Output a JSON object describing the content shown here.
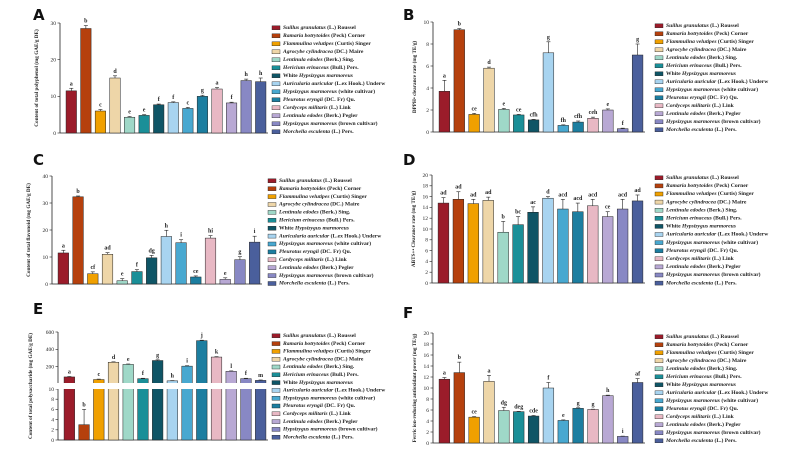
{
  "legend": [
    {
      "prefix": "",
      "species": "Suillus granulatus",
      "author": " (L.) Roussel",
      "color": "#9b1c2a"
    },
    {
      "prefix": "",
      "species": "Ramaria botrytoides",
      "author": " (Peck) Corner",
      "color": "#b5400d"
    },
    {
      "prefix": "",
      "species": "Flammulina velutipes",
      "author": " (Curtis) Singer",
      "color": "#f0a000"
    },
    {
      "prefix": "",
      "species": "Agrocybe cylindracea",
      "author": " (DC.) Maire",
      "color": "#eed6a8"
    },
    {
      "prefix": "",
      "species": "Lentinula edodes",
      "author": " (Berk.) Sing.",
      "color": "#9fd8c8"
    },
    {
      "prefix": "",
      "species": "Hericium erinaceus",
      "author": " (Bull.) Pers.",
      "color": "#1a8f98"
    },
    {
      "prefix": "White ",
      "species": "Hypsizygus marmoreus",
      "author": "",
      "color": "#0f5566"
    },
    {
      "prefix": "",
      "species": "Auricularia auricular",
      "author": " (L.ex Hook.) Underw",
      "color": "#a8d4f0"
    },
    {
      "prefix": "",
      "species": "Hypsizygus marmoreus",
      "author": " (white cultivar)",
      "color": "#48a8d0"
    },
    {
      "prefix": "",
      "species": "Pleurotus eryngii",
      "author": " (DC. Fr) Qu.",
      "color": "#1c7ea0"
    },
    {
      "prefix": "",
      "species": "Cordyceps militaris",
      "author": " (L.) Link",
      "color": "#e8b8c4"
    },
    {
      "prefix": "",
      "species": "Lentinula edodes",
      "author": " (Berk.) Pegler",
      "color": "#b8a8d4"
    },
    {
      "prefix": "",
      "species": "Hypsizygus marmoreus",
      "author": " (brown cultivar)",
      "color": "#8888c4"
    },
    {
      "prefix": "",
      "species": "Morchella esculenta",
      "author": " (L.) Pers.",
      "color": "#4a5f9c"
    }
  ],
  "chart_data": [
    {
      "panel": "A",
      "type": "bar",
      "ylabel": "Content of total polyphenol (mg GAE/g DE)",
      "ylim": [
        0,
        30
      ],
      "yticks": [
        0,
        10,
        20,
        30
      ],
      "values": [
        11.5,
        28.5,
        6.0,
        15.0,
        4.3,
        4.8,
        7.7,
        8.3,
        6.7,
        10.0,
        12.0,
        8.2,
        14.3,
        14.0
      ],
      "errors": [
        0.7,
        0.8,
        0.4,
        0.6,
        0.2,
        0.2,
        0.2,
        0.2,
        0.3,
        0.3,
        0.4,
        0.2,
        0.4,
        1.0
      ],
      "letters": [
        "a",
        "b",
        "c",
        "d",
        "e",
        "e",
        "f",
        "f",
        "c",
        "g",
        "a",
        "f",
        "h",
        "h"
      ]
    },
    {
      "panel": "B",
      "type": "bar",
      "ylabel": "DPPH• clearance rate (mg TE/g)",
      "ylim": [
        0,
        10
      ],
      "yticks": [
        0,
        2,
        4,
        6,
        8,
        10
      ],
      "values": [
        3.7,
        9.3,
        1.6,
        5.8,
        2.05,
        1.55,
        1.1,
        7.2,
        0.6,
        0.9,
        1.25,
        2.0,
        0.3,
        7.0
      ],
      "errors": [
        1.0,
        0.1,
        0.1,
        0.1,
        0.1,
        0.05,
        0.05,
        1.0,
        0.05,
        0.1,
        0.1,
        0.1,
        0.05,
        1.0
      ],
      "letters": [
        "a",
        "b",
        "ce",
        "d",
        "e",
        "ce",
        "cfh",
        "g",
        "fh",
        "cfh",
        "ceh",
        "e",
        "f",
        "g"
      ]
    },
    {
      "panel": "C",
      "type": "bar",
      "ylabel": "Content of total flavonoid (mg GAE/g DE)",
      "ylim": [
        0,
        40
      ],
      "yticks": [
        0,
        10,
        20,
        30,
        40
      ],
      "values": [
        11.5,
        32.3,
        3.8,
        11.0,
        1.2,
        4.6,
        9.7,
        17.6,
        15.3,
        2.6,
        17.0,
        1.7,
        9.0,
        15.5
      ],
      "errors": [
        1.0,
        0.3,
        0.7,
        0.6,
        0.8,
        0.7,
        0.9,
        2.3,
        1.1,
        0.4,
        0.9,
        0.6,
        1.1,
        2.2
      ],
      "letters": [
        "a",
        "b",
        "cf",
        "ad",
        "e",
        "f",
        "dg",
        "h",
        "i",
        "ce",
        "hi",
        "e",
        "g",
        "i"
      ]
    },
    {
      "panel": "D",
      "type": "bar",
      "ylabel": "ABTS+• Clearance rate (mg TE/g)",
      "ylim": [
        0,
        20
      ],
      "yticks": [
        0,
        2,
        4,
        6,
        8,
        10,
        12,
        14,
        16,
        18,
        20
      ],
      "values": [
        14.8,
        15.5,
        14.7,
        15.3,
        9.4,
        10.8,
        13.1,
        15.7,
        13.7,
        13.2,
        14.3,
        12.3,
        13.7,
        15.2
      ],
      "errors": [
        1.0,
        1.4,
        0.8,
        0.6,
        2.0,
        1.5,
        1.0,
        0.3,
        1.8,
        1.6,
        1.2,
        0.9,
        1.8,
        1.1
      ],
      "letters": [
        "ad",
        "ad",
        "ad",
        "ad",
        "b",
        "bc",
        "ac",
        "d",
        "acd",
        "acd",
        "acd",
        "ce",
        "acd",
        "ad"
      ]
    },
    {
      "panel": "E",
      "type": "bar",
      "ylabel": "Content of total polysaccharide (mg GAE/g DE)",
      "broken_axis": true,
      "y_segments": [
        [
          0,
          10
        ],
        [
          10,
          600
        ]
      ],
      "yticks_lower": [
        0,
        2,
        4,
        6,
        8,
        10
      ],
      "yticks_upper": [
        200,
        400,
        600
      ],
      "values": [
        80,
        3,
        50,
        250,
        225,
        60,
        270,
        35,
        205,
        500,
        310,
        145,
        60,
        40
      ],
      "errors": [
        5,
        3,
        5,
        5,
        5,
        5,
        8,
        3,
        5,
        5,
        5,
        5,
        5,
        5
      ],
      "letters": [
        "a",
        "b",
        "c",
        "d",
        "e",
        "f",
        "g",
        "h",
        "i",
        "j",
        "k",
        "l",
        "f",
        "m"
      ]
    },
    {
      "panel": "F",
      "type": "bar",
      "ylabel": "Ferric ion-reducing antioxidant power (mg TE/g)",
      "ylim": [
        0,
        20
      ],
      "yticks": [
        0,
        2,
        4,
        6,
        8,
        10,
        12,
        14,
        16,
        18,
        20
      ],
      "values": [
        11.6,
        12.8,
        4.7,
        11.2,
        5.9,
        5.7,
        4.9,
        10.0,
        4.1,
        6.3,
        6.1,
        8.6,
        1.2,
        11.0
      ],
      "errors": [
        0.3,
        1.9,
        0.1,
        1.1,
        0.6,
        0.05,
        0.1,
        1.0,
        0.1,
        0.1,
        0.05,
        0.1,
        0.05,
        0.7
      ],
      "letters": [
        "a",
        "b",
        "ce",
        "a",
        "dg",
        "deg",
        "cde",
        "f",
        "e",
        "g",
        "g",
        "h",
        "i",
        "af"
      ]
    }
  ]
}
